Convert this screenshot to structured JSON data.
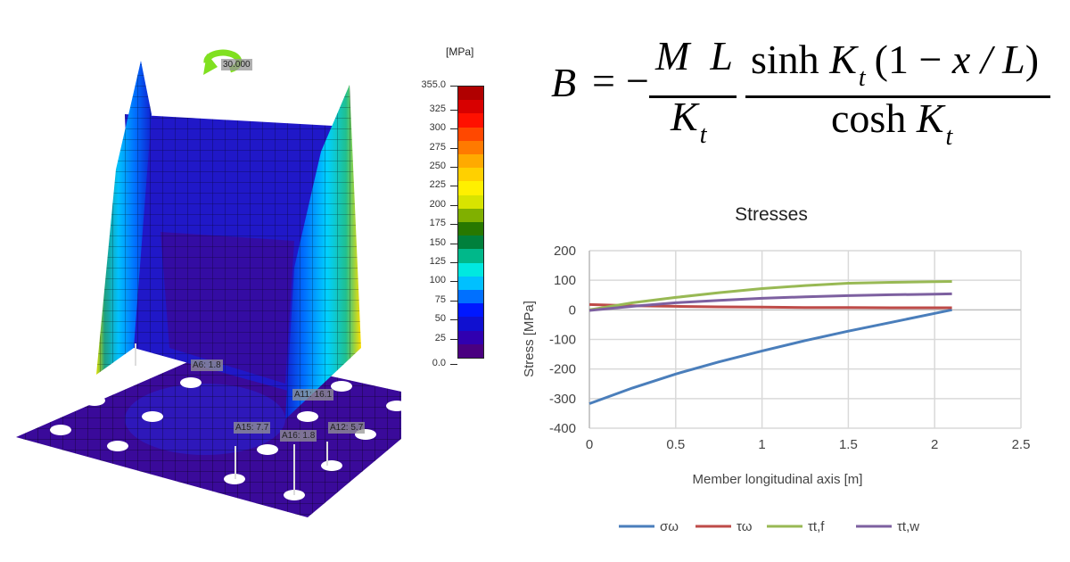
{
  "fea_model": {
    "unit_label": "[MPa]",
    "moment_label": "30.000",
    "colorbar": {
      "tick_labels": [
        "355.0",
        "325",
        "300",
        "275",
        "250",
        "225",
        "200",
        "175",
        "150",
        "125",
        "100",
        "75",
        "50",
        "25",
        "0.0"
      ],
      "colors": [
        "#b00000",
        "#d80000",
        "#ff1000",
        "#ff4800",
        "#ff7a00",
        "#ffaa00",
        "#ffd000",
        "#fff000",
        "#d8e400",
        "#80b000",
        "#287800",
        "#00803c",
        "#00b88a",
        "#00e8e0",
        "#00c0ff",
        "#0070ff",
        "#0018ff",
        "#1010d0",
        "#3000b0",
        "#4a0080"
      ],
      "range": [
        0,
        355
      ]
    },
    "annotations": [
      "A6: 1.8",
      "A11: 16.1",
      "A15: 7.7",
      "A16: 1.8",
      "A12: 5.7"
    ]
  },
  "formula": {
    "lhs": "B",
    "equals": "=",
    "minus": "−",
    "frac1_num": "M  L",
    "frac1_den": "K",
    "sub_t": "t",
    "frac2_num_a": "sinh ",
    "frac2_num_b": "K",
    "frac2_num_c": "(1 − ",
    "frac2_num_d": "x / L",
    "frac2_num_e": ")",
    "frac2_den_a": "cosh ",
    "frac2_den_b": "K"
  },
  "chart_data": {
    "type": "line",
    "title": "Stresses",
    "xlabel": "Member longitudinal axis [m]",
    "ylabel": "Stress [MPa]",
    "xlim": [
      0,
      2.5
    ],
    "ylim": [
      -400,
      200
    ],
    "xticks": [
      "0",
      "0.5",
      "1",
      "1.5",
      "2",
      "2.5"
    ],
    "yticks": [
      "200",
      "100",
      "0",
      "-100",
      "-200",
      "-300",
      "-400"
    ],
    "grid": true,
    "legend_position": "bottom",
    "x": [
      0,
      0.25,
      0.5,
      0.75,
      1.0,
      1.25,
      1.5,
      1.75,
      2.0,
      2.1
    ],
    "series": [
      {
        "name": "σω",
        "color": "#4a7ebb",
        "values": [
          -317,
          -264,
          -217,
          -176,
          -139,
          -104,
          -72,
          -42,
          -12,
          0
        ]
      },
      {
        "name": "τω",
        "color": "#be4b48",
        "values": [
          18,
          14,
          12,
          10,
          9,
          8,
          8,
          7,
          7,
          7
        ]
      },
      {
        "name": "τt,f",
        "color": "#98b954",
        "values": [
          0,
          24,
          42,
          58,
          72,
          82,
          90,
          93,
          95,
          96
        ]
      },
      {
        "name": "τt,w",
        "color": "#7d60a0",
        "values": [
          -2,
          12,
          24,
          32,
          39,
          44,
          48,
          51,
          53,
          54
        ]
      }
    ]
  }
}
